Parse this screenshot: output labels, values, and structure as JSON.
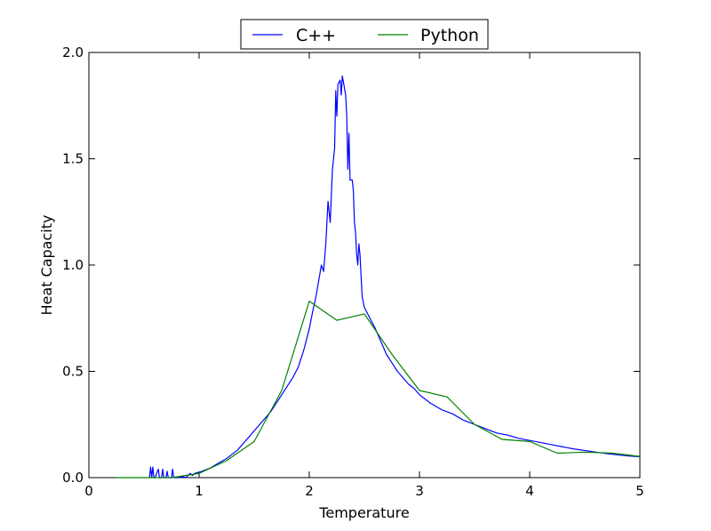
{
  "chart_data": {
    "type": "line",
    "xlabel": "Temperature",
    "ylabel": "Heat Capacity",
    "xlim": [
      0,
      5
    ],
    "ylim": [
      0,
      2.0
    ],
    "grid": false,
    "legend_position": "top-center",
    "x_ticks": [
      {
        "value": 0,
        "label": "0"
      },
      {
        "value": 1,
        "label": "1"
      },
      {
        "value": 2,
        "label": "2"
      },
      {
        "value": 3,
        "label": "3"
      },
      {
        "value": 4,
        "label": "4"
      },
      {
        "value": 5,
        "label": "5"
      }
    ],
    "y_ticks": [
      {
        "value": 0,
        "label": "0.0"
      },
      {
        "value": 0.5,
        "label": "0.5"
      },
      {
        "value": 1.0,
        "label": "1.0"
      },
      {
        "value": 1.5,
        "label": "1.5"
      },
      {
        "value": 2.0,
        "label": "2.0"
      }
    ],
    "series": [
      {
        "name": "C++",
        "color": "#0000ff",
        "points": [
          [
            0.55,
            0.0
          ],
          [
            0.56,
            0.05
          ],
          [
            0.57,
            0.0
          ],
          [
            0.58,
            0.05
          ],
          [
            0.59,
            0.0
          ],
          [
            0.6,
            0.0
          ],
          [
            0.63,
            0.04
          ],
          [
            0.64,
            0.0
          ],
          [
            0.66,
            0.0
          ],
          [
            0.67,
            0.04
          ],
          [
            0.68,
            0.0
          ],
          [
            0.7,
            0.0
          ],
          [
            0.71,
            0.03
          ],
          [
            0.72,
            0.0
          ],
          [
            0.75,
            0.0
          ],
          [
            0.76,
            0.04
          ],
          [
            0.77,
            0.0
          ],
          [
            0.8,
            0.0
          ],
          [
            0.85,
            0.005
          ],
          [
            0.88,
            0.0
          ],
          [
            0.9,
            0.01
          ],
          [
            0.92,
            0.02
          ],
          [
            0.94,
            0.01
          ],
          [
            0.96,
            0.02
          ],
          [
            1.0,
            0.025
          ],
          [
            1.05,
            0.035
          ],
          [
            1.1,
            0.045
          ],
          [
            1.15,
            0.06
          ],
          [
            1.2,
            0.075
          ],
          [
            1.25,
            0.09
          ],
          [
            1.3,
            0.11
          ],
          [
            1.35,
            0.13
          ],
          [
            1.4,
            0.16
          ],
          [
            1.45,
            0.19
          ],
          [
            1.5,
            0.22
          ],
          [
            1.55,
            0.25
          ],
          [
            1.6,
            0.28
          ],
          [
            1.65,
            0.31
          ],
          [
            1.7,
            0.35
          ],
          [
            1.75,
            0.39
          ],
          [
            1.8,
            0.43
          ],
          [
            1.85,
            0.47
          ],
          [
            1.9,
            0.52
          ],
          [
            1.95,
            0.6
          ],
          [
            2.0,
            0.7
          ],
          [
            2.03,
            0.78
          ],
          [
            2.06,
            0.85
          ],
          [
            2.09,
            0.94
          ],
          [
            2.11,
            1.0
          ],
          [
            2.13,
            0.97
          ],
          [
            2.15,
            1.1
          ],
          [
            2.17,
            1.3
          ],
          [
            2.19,
            1.2
          ],
          [
            2.21,
            1.45
          ],
          [
            2.23,
            1.55
          ],
          [
            2.24,
            1.82
          ],
          [
            2.25,
            1.7
          ],
          [
            2.26,
            1.85
          ],
          [
            2.28,
            1.87
          ],
          [
            2.29,
            1.8
          ],
          [
            2.3,
            1.89
          ],
          [
            2.31,
            1.86
          ],
          [
            2.33,
            1.8
          ],
          [
            2.34,
            1.7
          ],
          [
            2.35,
            1.45
          ],
          [
            2.36,
            1.62
          ],
          [
            2.37,
            1.4
          ],
          [
            2.39,
            1.4
          ],
          [
            2.4,
            1.35
          ],
          [
            2.41,
            1.2
          ],
          [
            2.42,
            1.15
          ],
          [
            2.43,
            1.05
          ],
          [
            2.44,
            1.0
          ],
          [
            2.45,
            1.1
          ],
          [
            2.46,
            1.05
          ],
          [
            2.47,
            0.95
          ],
          [
            2.48,
            0.85
          ],
          [
            2.5,
            0.8
          ],
          [
            2.52,
            0.78
          ],
          [
            2.55,
            0.75
          ],
          [
            2.6,
            0.7
          ],
          [
            2.65,
            0.64
          ],
          [
            2.7,
            0.58
          ],
          [
            2.75,
            0.54
          ],
          [
            2.8,
            0.5
          ],
          [
            2.85,
            0.47
          ],
          [
            2.9,
            0.44
          ],
          [
            2.95,
            0.42
          ],
          [
            3.0,
            0.39
          ],
          [
            3.1,
            0.35
          ],
          [
            3.2,
            0.32
          ],
          [
            3.3,
            0.3
          ],
          [
            3.4,
            0.27
          ],
          [
            3.5,
            0.25
          ],
          [
            3.6,
            0.23
          ],
          [
            3.7,
            0.21
          ],
          [
            3.8,
            0.2
          ],
          [
            3.9,
            0.185
          ],
          [
            4.0,
            0.175
          ],
          [
            4.1,
            0.165
          ],
          [
            4.2,
            0.155
          ],
          [
            4.3,
            0.145
          ],
          [
            4.4,
            0.135
          ],
          [
            4.5,
            0.128
          ],
          [
            4.6,
            0.12
          ],
          [
            4.7,
            0.113
          ],
          [
            4.8,
            0.107
          ],
          [
            4.9,
            0.102
          ],
          [
            5.0,
            0.098
          ]
        ]
      },
      {
        "name": "Python",
        "color": "#008000",
        "points": [
          [
            0.25,
            0.0
          ],
          [
            0.5,
            0.0
          ],
          [
            0.75,
            0.0
          ],
          [
            1.0,
            0.02
          ],
          [
            1.25,
            0.08
          ],
          [
            1.5,
            0.17
          ],
          [
            1.75,
            0.41
          ],
          [
            2.0,
            0.83
          ],
          [
            2.25,
            0.74
          ],
          [
            2.5,
            0.77
          ],
          [
            2.75,
            0.58
          ],
          [
            3.0,
            0.41
          ],
          [
            3.25,
            0.38
          ],
          [
            3.5,
            0.25
          ],
          [
            3.75,
            0.18
          ],
          [
            4.0,
            0.17
          ],
          [
            4.25,
            0.115
          ],
          [
            4.5,
            0.12
          ],
          [
            4.75,
            0.115
          ],
          [
            5.0,
            0.1
          ]
        ]
      }
    ]
  }
}
